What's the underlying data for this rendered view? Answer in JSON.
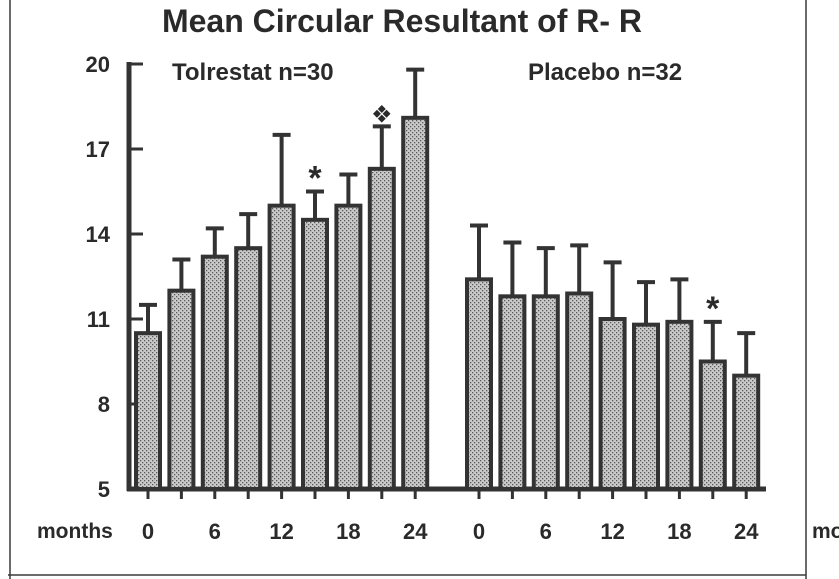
{
  "chart_data": {
    "type": "bar",
    "title": "Mean Circular Resultant of R- R",
    "ylim": [
      5,
      20
    ],
    "yticks": [
      "20",
      "17",
      "14",
      "11",
      "8",
      "5"
    ],
    "grid": false,
    "axis_caption": "months",
    "groups": [
      {
        "label": "Tolrestat n=30",
        "x_tick_labels": [
          "0",
          "6",
          "12",
          "18",
          "24"
        ],
        "months": [
          0,
          3,
          6,
          9,
          12,
          15,
          18,
          21,
          24
        ],
        "values": [
          10.5,
          12.0,
          13.2,
          13.5,
          15.0,
          14.5,
          15.0,
          16.3,
          18.1
        ],
        "error_upper": [
          11.5,
          13.1,
          14.2,
          14.7,
          17.5,
          15.5,
          16.1,
          17.8,
          19.8
        ],
        "annotations": [
          {
            "text": "*",
            "month": 15
          },
          {
            "text": "❖",
            "month": 21
          }
        ]
      },
      {
        "label": "Placebo n=32",
        "x_tick_labels": [
          "0",
          "6",
          "12",
          "18",
          "24"
        ],
        "months": [
          0,
          3,
          6,
          9,
          12,
          15,
          18,
          21,
          24
        ],
        "values": [
          12.4,
          11.8,
          11.8,
          11.9,
          11.0,
          10.8,
          10.9,
          9.5,
          9.0
        ],
        "error_upper": [
          14.3,
          13.7,
          13.5,
          13.6,
          13.0,
          12.3,
          12.4,
          10.9,
          10.5
        ],
        "annotations": [
          {
            "text": "*",
            "month": 21
          }
        ]
      }
    ],
    "partial_right_edge_text": "mo"
  }
}
